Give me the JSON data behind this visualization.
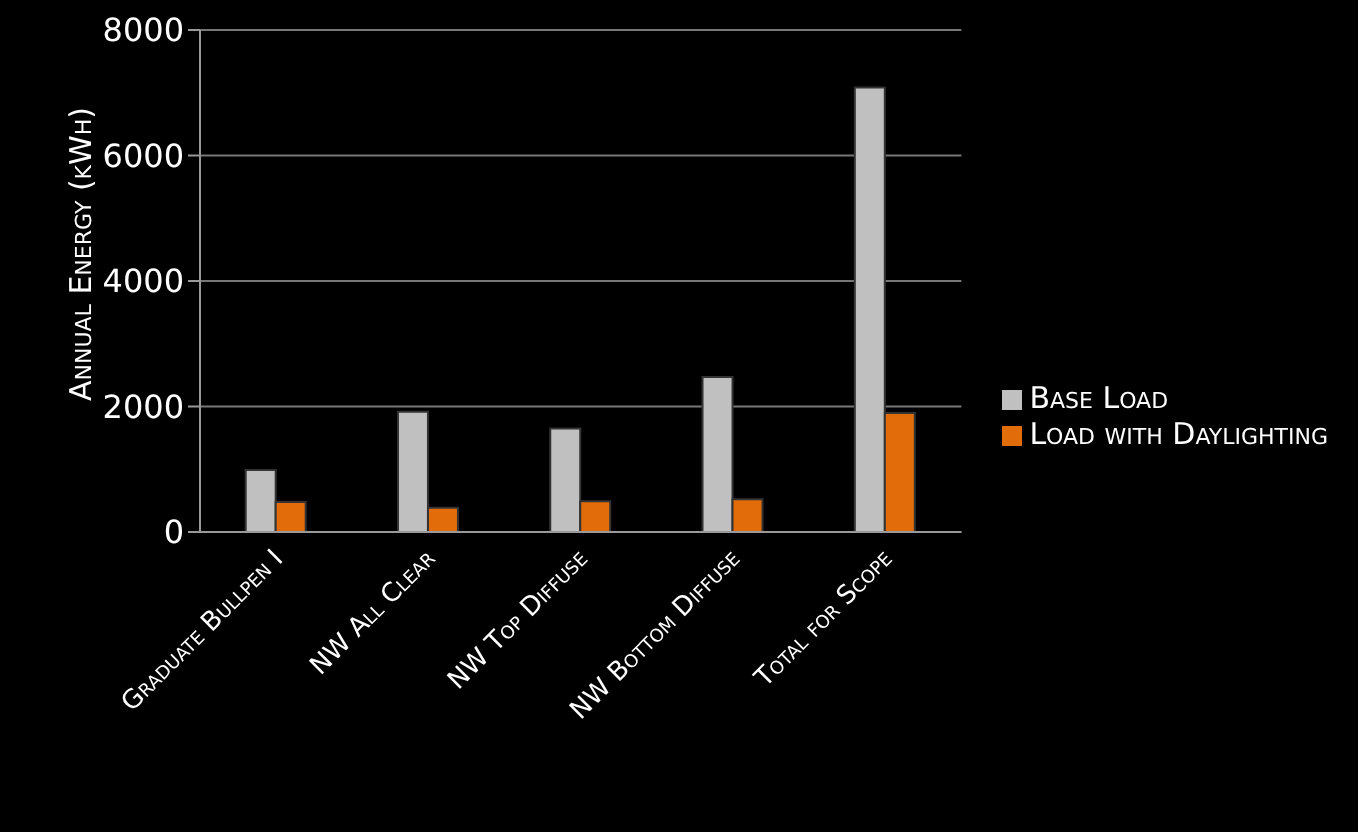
{
  "chart_data": {
    "type": "bar",
    "ylabel": "Annual Energy (kWh)",
    "categories": [
      "Graduate Bullpen I",
      "NW All Clear",
      "NW Top Diffuse",
      "NW Bottom Diffuse",
      "Total for Scope"
    ],
    "series": [
      {
        "name": "Base Load",
        "color": "#c0c0c0",
        "values": [
          990,
          1915,
          1650,
          2470,
          7085
        ]
      },
      {
        "name": "Load with Daylighting",
        "color": "#e36c0a",
        "values": [
          480,
          385,
          490,
          520,
          1895
        ]
      }
    ],
    "ylim": [
      0,
      8000
    ],
    "yticks": [
      0,
      2000,
      4000,
      6000,
      8000
    ],
    "grid": "y",
    "legend": "right"
  }
}
